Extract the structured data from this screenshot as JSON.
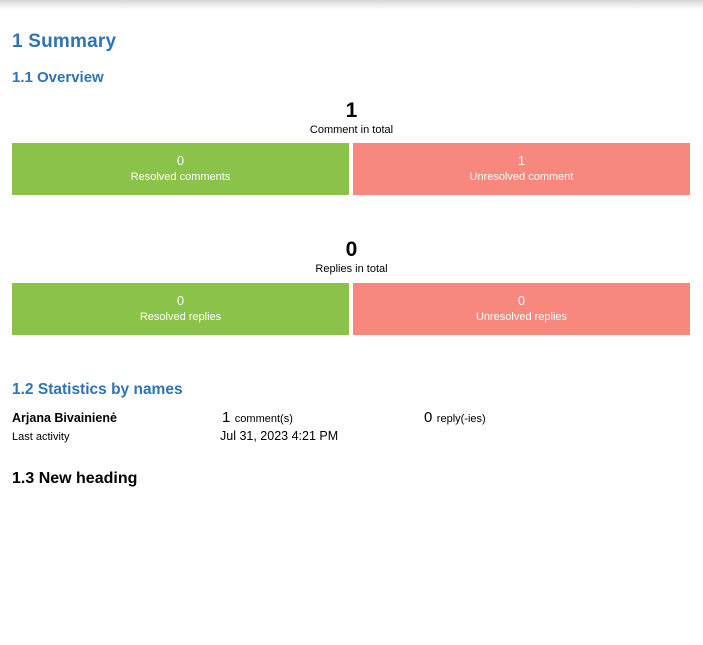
{
  "headings": {
    "summary": "1 Summary",
    "overview": "1.1 Overview",
    "statistics": "1.2 Statistics by names",
    "new_heading": "1.3 New heading"
  },
  "colors": {
    "heading_blue": "#2E74B5",
    "resolved_green": "#8BC34A",
    "unresolved_red": "#F8877E",
    "bar_text": "#FFFFFF"
  },
  "overview": {
    "comments": {
      "total_value": "1",
      "total_label": "Comment in total",
      "resolved_value": "0",
      "resolved_label": "Resolved comments",
      "unresolved_value": "1",
      "unresolved_label": "Unresolved comment"
    },
    "replies": {
      "total_value": "0",
      "total_label": "Replies in total",
      "resolved_value": "0",
      "resolved_label": "Resolved replies",
      "unresolved_value": "0",
      "unresolved_label": "Unresolved replies"
    }
  },
  "statistics": {
    "row": {
      "name": "Arjana Bivainienė",
      "comments_value": "1",
      "comments_label": "comment(s)",
      "replies_value": "0",
      "replies_label": "reply(-ies)",
      "last_activity_label": "Last activity",
      "last_activity_value": "Jul 31, 2023 4:21 PM"
    }
  },
  "chart_data": [
    {
      "type": "bar",
      "title": "Comment in total",
      "total": 1,
      "categories": [
        "Resolved comments",
        "Unresolved comment"
      ],
      "values": [
        0,
        1
      ],
      "colors": [
        "#8BC34A",
        "#F8877E"
      ],
      "legend_position": "inside-bars",
      "grid": false
    },
    {
      "type": "bar",
      "title": "Replies in total",
      "total": 0,
      "categories": [
        "Resolved replies",
        "Unresolved replies"
      ],
      "values": [
        0,
        0
      ],
      "colors": [
        "#8BC34A",
        "#F8877E"
      ],
      "legend_position": "inside-bars",
      "grid": false
    }
  ]
}
